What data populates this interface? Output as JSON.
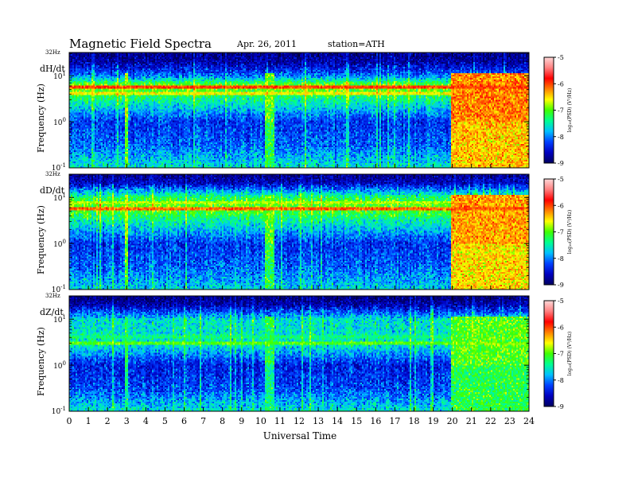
{
  "header": {
    "title": "Magnetic Field Spectra",
    "date": "Apr. 26, 2011",
    "station": "station=ATH"
  },
  "panels": [
    {
      "id": "dh",
      "component_label": "dH/dt",
      "top_label": "32Hz"
    },
    {
      "id": "dd",
      "component_label": "dD/dt",
      "top_label": "32Hz"
    },
    {
      "id": "dz",
      "component_label": "dZ/dt",
      "top_label": "32Hz"
    }
  ],
  "y_axis": {
    "label": "Frequency (Hz)",
    "tick_labels": [
      {
        "base": "10",
        "exp": "1",
        "value": 10
      },
      {
        "base": "10",
        "exp": "0",
        "value": 1
      },
      {
        "base": "10",
        "exp": "-1",
        "value": 0.1
      }
    ],
    "scale": "log",
    "range": [
      0.1,
      32
    ]
  },
  "x_axis": {
    "label": "Universal Time",
    "tick_labels": [
      "0",
      "1",
      "2",
      "3",
      "4",
      "5",
      "6",
      "7",
      "8",
      "9",
      "10",
      "11",
      "12",
      "13",
      "14",
      "15",
      "16",
      "17",
      "18",
      "19",
      "20",
      "21",
      "22",
      "23",
      "24"
    ],
    "range": [
      0,
      24
    ]
  },
  "colorbar": {
    "label": "log₁₀(PSD) (V²/Hz)",
    "tick_labels": [
      "-5",
      "-6",
      "-7",
      "-8",
      "-9"
    ],
    "range": [
      -9,
      -5
    ],
    "colors": [
      "#000060",
      "#0000c0",
      "#0040ff",
      "#00c0ff",
      "#00ff90",
      "#40ff00",
      "#ffff00",
      "#ff8000",
      "#ff0000",
      "#ff8080",
      "#ffd8d8"
    ]
  },
  "chart_data": [
    {
      "type": "heatmap",
      "title": "Magnetic Field Spectra",
      "component": "dH/dt",
      "xlabel": "Universal Time",
      "ylabel": "Frequency (Hz)",
      "xlim": [
        0,
        24
      ],
      "ylim": [
        0.1,
        32
      ],
      "yscale": "log",
      "zlim": [
        -9,
        -5
      ],
      "zlabel": "log10(PSD) (V^2/Hz)",
      "background_log_psd_by_frequency": [
        {
          "freq": 0.1,
          "log_psd": -7.6
        },
        {
          "freq": 0.3,
          "log_psd": -8.1
        },
        {
          "freq": 1,
          "log_psd": -8.3
        },
        {
          "freq": 3,
          "log_psd": -7.4
        },
        {
          "freq": 6,
          "log_psd": -6.8
        },
        {
          "freq": 10,
          "log_psd": -8.0
        },
        {
          "freq": 20,
          "log_psd": -8.7
        },
        {
          "freq": 32,
          "log_psd": -8.8
        }
      ],
      "narrowband_lines": [
        {
          "freq": 5.5,
          "log_psd": -6.0,
          "hours": [
            0,
            24
          ]
        },
        {
          "freq": 4.2,
          "log_psd": -6.6,
          "hours": [
            0,
            24
          ]
        }
      ],
      "broadband_events": [
        {
          "hours": [
            2.9,
            3.0
          ],
          "log_psd": -6.8
        },
        {
          "hours": [
            10.2,
            10.7
          ],
          "log_psd": -7.0
        },
        {
          "hours": [
            20.0,
            24.0
          ],
          "log_psd": -6.2
        }
      ]
    },
    {
      "type": "heatmap",
      "component": "dD/dt",
      "xlabel": "Universal Time",
      "ylabel": "Frequency (Hz)",
      "xlim": [
        0,
        24
      ],
      "ylim": [
        0.1,
        32
      ],
      "yscale": "log",
      "zlim": [
        -9,
        -5
      ],
      "zlabel": "log10(PSD) (V^2/Hz)",
      "background_log_psd_by_frequency": [
        {
          "freq": 0.1,
          "log_psd": -7.7
        },
        {
          "freq": 0.3,
          "log_psd": -8.1
        },
        {
          "freq": 1,
          "log_psd": -8.3
        },
        {
          "freq": 3,
          "log_psd": -7.5
        },
        {
          "freq": 6,
          "log_psd": -6.9
        },
        {
          "freq": 10,
          "log_psd": -7.2
        },
        {
          "freq": 20,
          "log_psd": -8.5
        },
        {
          "freq": 32,
          "log_psd": -8.8
        }
      ],
      "narrowband_lines": [
        {
          "freq": 5.5,
          "log_psd": -6.1,
          "hours": [
            0,
            24
          ]
        },
        {
          "freq": 8.0,
          "log_psd": -6.8,
          "hours": [
            0,
            24
          ]
        }
      ],
      "broadband_events": [
        {
          "hours": [
            2.9,
            3.0
          ],
          "log_psd": -6.8
        },
        {
          "hours": [
            10.2,
            10.7
          ],
          "log_psd": -7.0
        },
        {
          "hours": [
            20.0,
            24.0
          ],
          "log_psd": -6.3
        }
      ]
    },
    {
      "type": "heatmap",
      "component": "dZ/dt",
      "xlabel": "Universal Time",
      "ylabel": "Frequency (Hz)",
      "xlim": [
        0,
        24
      ],
      "ylim": [
        0.1,
        32
      ],
      "yscale": "log",
      "zlim": [
        -9,
        -5
      ],
      "zlabel": "log10(PSD) (V^2/Hz)",
      "background_log_psd_by_frequency": [
        {
          "freq": 0.1,
          "log_psd": -7.6
        },
        {
          "freq": 0.3,
          "log_psd": -8.2
        },
        {
          "freq": 1,
          "log_psd": -8.4
        },
        {
          "freq": 3,
          "log_psd": -7.5
        },
        {
          "freq": 6,
          "log_psd": -7.6
        },
        {
          "freq": 10,
          "log_psd": -7.6
        },
        {
          "freq": 20,
          "log_psd": -8.6
        },
        {
          "freq": 32,
          "log_psd": -8.9
        }
      ],
      "narrowband_lines": [
        {
          "freq": 3.0,
          "log_psd": -7.0,
          "hours": [
            0,
            24
          ]
        },
        {
          "freq": 4.0,
          "log_psd": -7.4,
          "hours": [
            0,
            24
          ]
        }
      ],
      "broadband_events": [
        {
          "hours": [
            2.9,
            3.0
          ],
          "log_psd": -7.2
        },
        {
          "hours": [
            10.2,
            10.7
          ],
          "log_psd": -7.2
        },
        {
          "hours": [
            20.0,
            24.0
          ],
          "log_psd": -7.0
        }
      ]
    }
  ]
}
